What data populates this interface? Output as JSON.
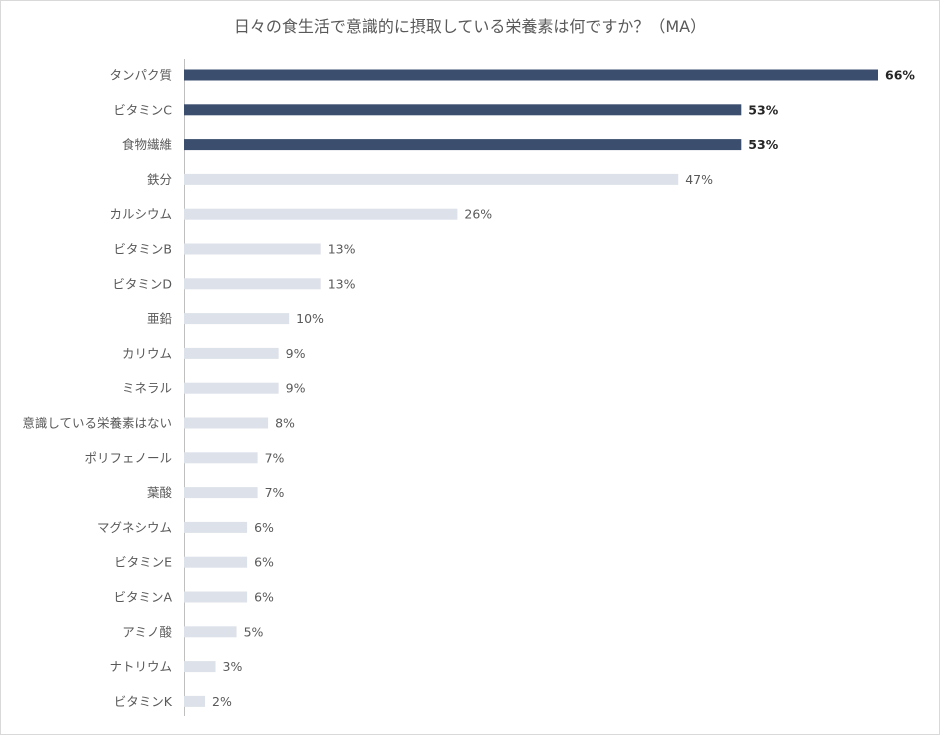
{
  "chart_data": {
    "type": "bar",
    "orientation": "horizontal",
    "title": "日々の食生活で意識的に摂取している栄養素は何ですか？（MA）",
    "categories": [
      "タンパク質",
      "ビタミンC",
      "食物繊維",
      "鉄分",
      "カルシウム",
      "ビタミンB",
      "ビタミンD",
      "亜鉛",
      "カリウム",
      "ミネラル",
      "意識している栄養素はない",
      "ポリフェノール",
      "葉酸",
      "マグネシウム",
      "ビタミンE",
      "ビタミンA",
      "アミノ酸",
      "ナトリウム",
      "ビタミンK"
    ],
    "values": [
      66,
      53,
      53,
      47,
      26,
      13,
      13,
      10,
      9,
      9,
      8,
      7,
      7,
      6,
      6,
      6,
      5,
      3,
      2
    ],
    "value_labels": [
      "66%",
      "53%",
      "53%",
      "47%",
      "26%",
      "13%",
      "13%",
      "10%",
      "9%",
      "9%",
      "8%",
      "7%",
      "7%",
      "6%",
      "6%",
      "6%",
      "5%",
      "3%",
      "2%"
    ],
    "highlighted": [
      true,
      true,
      true,
      false,
      false,
      false,
      false,
      false,
      false,
      false,
      false,
      false,
      false,
      false,
      false,
      false,
      false,
      false,
      false
    ],
    "xlim": [
      0,
      66
    ],
    "grid": false,
    "legend": "none",
    "colors": {
      "highlight": "#3b4e6e",
      "normal": "#dde1e9"
    }
  }
}
